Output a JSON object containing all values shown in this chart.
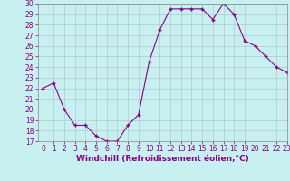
{
  "x": [
    0,
    1,
    2,
    3,
    4,
    5,
    6,
    7,
    8,
    9,
    10,
    11,
    12,
    13,
    14,
    15,
    16,
    17,
    18,
    19,
    20,
    21,
    22,
    23
  ],
  "y": [
    22,
    22.5,
    20,
    18.5,
    18.5,
    17.5,
    17,
    17,
    18.5,
    19.5,
    24.5,
    27.5,
    29.5,
    29.5,
    29.5,
    29.5,
    28.5,
    30,
    29,
    26.5,
    26,
    25,
    24,
    23.5
  ],
  "xlabel": "Windchill (Refroidissement éolien,°C)",
  "ylim": [
    17,
    30
  ],
  "xlim": [
    -0.5,
    23
  ],
  "yticks": [
    17,
    18,
    19,
    20,
    21,
    22,
    23,
    24,
    25,
    26,
    27,
    28,
    29,
    30
  ],
  "xticks": [
    0,
    1,
    2,
    3,
    4,
    5,
    6,
    7,
    8,
    9,
    10,
    11,
    12,
    13,
    14,
    15,
    16,
    17,
    18,
    19,
    20,
    21,
    22,
    23
  ],
  "line_color": "#880088",
  "marker": "+",
  "markersize": 3,
  "linewidth": 0.8,
  "bg_color": "#c8f0f0",
  "grid_color": "#aacccc",
  "tick_label_color": "#880088",
  "xlabel_color": "#880088",
  "font_size_tick": 5.5,
  "font_size_xlabel": 6.5
}
